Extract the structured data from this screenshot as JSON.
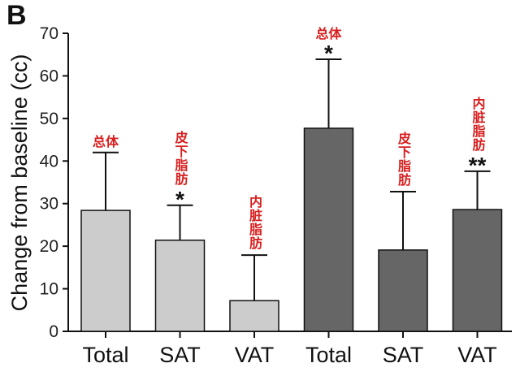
{
  "panel_label": "B",
  "chart_data": {
    "type": "bar",
    "title": "",
    "xlabel": "",
    "ylabel": "Change from baseline (cc)",
    "ylim": [
      0,
      70
    ],
    "yticks": [
      0,
      10,
      20,
      30,
      40,
      50,
      60,
      70
    ],
    "grid": false,
    "categories": [
      "Total",
      "SAT",
      "VAT",
      "Total",
      "SAT",
      "VAT"
    ],
    "values": [
      28.4,
      21.4,
      7.2,
      47.7,
      19.1,
      28.6
    ],
    "error_upper": [
      42.0,
      29.6,
      17.9,
      63.9,
      32.8,
      37.6
    ],
    "bar_colors": [
      "#cccccc",
      "#cccccc",
      "#cccccc",
      "#666666",
      "#666666",
      "#666666"
    ],
    "significance": [
      "",
      "*",
      "",
      "*",
      "",
      "**"
    ],
    "annotations": [
      "总体",
      "皮下脂肪",
      "内脏脂肪",
      "总体",
      "皮下脂肪",
      "内脏脂肪"
    ],
    "annotation_color": "#d81e1e"
  }
}
